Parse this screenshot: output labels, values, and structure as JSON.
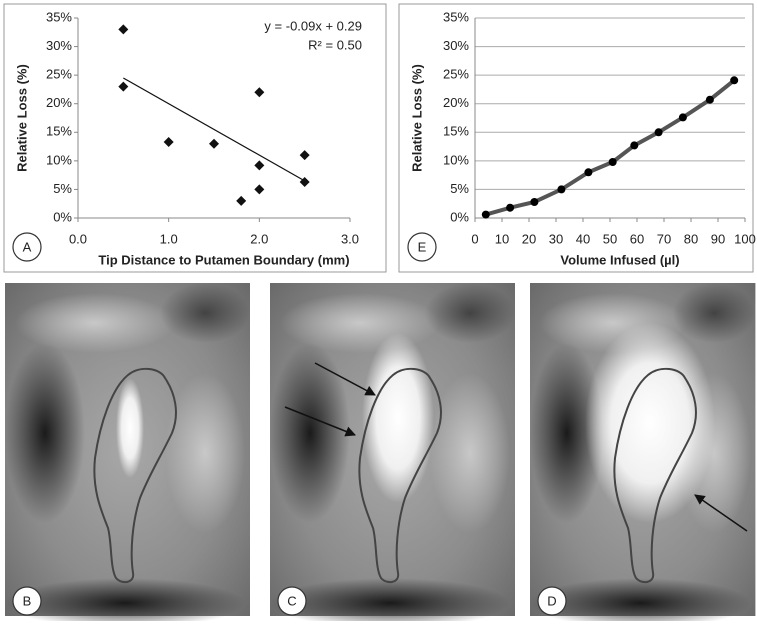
{
  "chart_data": [
    {
      "type": "scatter",
      "panel_label": "A",
      "x_label": "Tip Distance to Putamen Boundary (mm)",
      "y_label": "Relative Loss (%)",
      "annotations": [
        "y = -0.09x + 0.29",
        "R² = 0.50"
      ],
      "x": [
        0.5,
        0.5,
        1.0,
        1.5,
        1.8,
        2.0,
        2.0,
        2.0,
        2.5,
        2.5
      ],
      "values": [
        33,
        23,
        13.3,
        13,
        3,
        22,
        9.2,
        5,
        11,
        6.3
      ],
      "color": "#111111",
      "trendline": {
        "x": [
          0.5,
          2.5
        ],
        "values": [
          24.5,
          6.5
        ],
        "color": "#111111"
      },
      "xlim": [
        0,
        3
      ],
      "xticks": [
        {
          "value": 0,
          "label": "0.0"
        },
        {
          "value": 1,
          "label": "1.0"
        },
        {
          "value": 2,
          "label": "2.0"
        },
        {
          "value": 3,
          "label": "3.0"
        }
      ],
      "ylim": [
        0,
        35
      ],
      "yticks": [
        {
          "value": 0,
          "label": "0%"
        },
        {
          "value": 5,
          "label": "5%"
        },
        {
          "value": 10,
          "label": "10%"
        },
        {
          "value": 15,
          "label": "15%"
        },
        {
          "value": 20,
          "label": "20%"
        },
        {
          "value": 25,
          "label": "25%"
        },
        {
          "value": 30,
          "label": "30%"
        },
        {
          "value": 35,
          "label": "35%"
        }
      ],
      "grid": false
    },
    {
      "type": "line",
      "panel_label": "E",
      "x_label": "Volume Infused (µl)",
      "y_label": "Relative Loss (%)",
      "x": [
        4,
        13,
        22,
        32,
        42,
        51,
        59,
        68,
        77,
        87,
        96
      ],
      "values": [
        0.6,
        1.8,
        2.8,
        5,
        8,
        9.8,
        12.7,
        15,
        17.6,
        20.7,
        24.1
      ],
      "color": "#555555",
      "xlim": [
        0,
        100
      ],
      "xticks": [
        0,
        10,
        20,
        30,
        40,
        50,
        60,
        70,
        80,
        90,
        100
      ],
      "ylim": [
        0,
        35
      ],
      "yticks": [
        {
          "value": 0,
          "label": "0%"
        },
        {
          "value": 5,
          "label": "5%"
        },
        {
          "value": 10,
          "label": "10%"
        },
        {
          "value": 15,
          "label": "15%"
        },
        {
          "value": 20,
          "label": "20%"
        },
        {
          "value": 25,
          "label": "25%"
        },
        {
          "value": 30,
          "label": "30%"
        },
        {
          "value": 35,
          "label": "35%"
        }
      ],
      "grid": true
    }
  ],
  "image_panels": [
    {
      "label": "B"
    },
    {
      "label": "C"
    },
    {
      "label": "D"
    }
  ]
}
